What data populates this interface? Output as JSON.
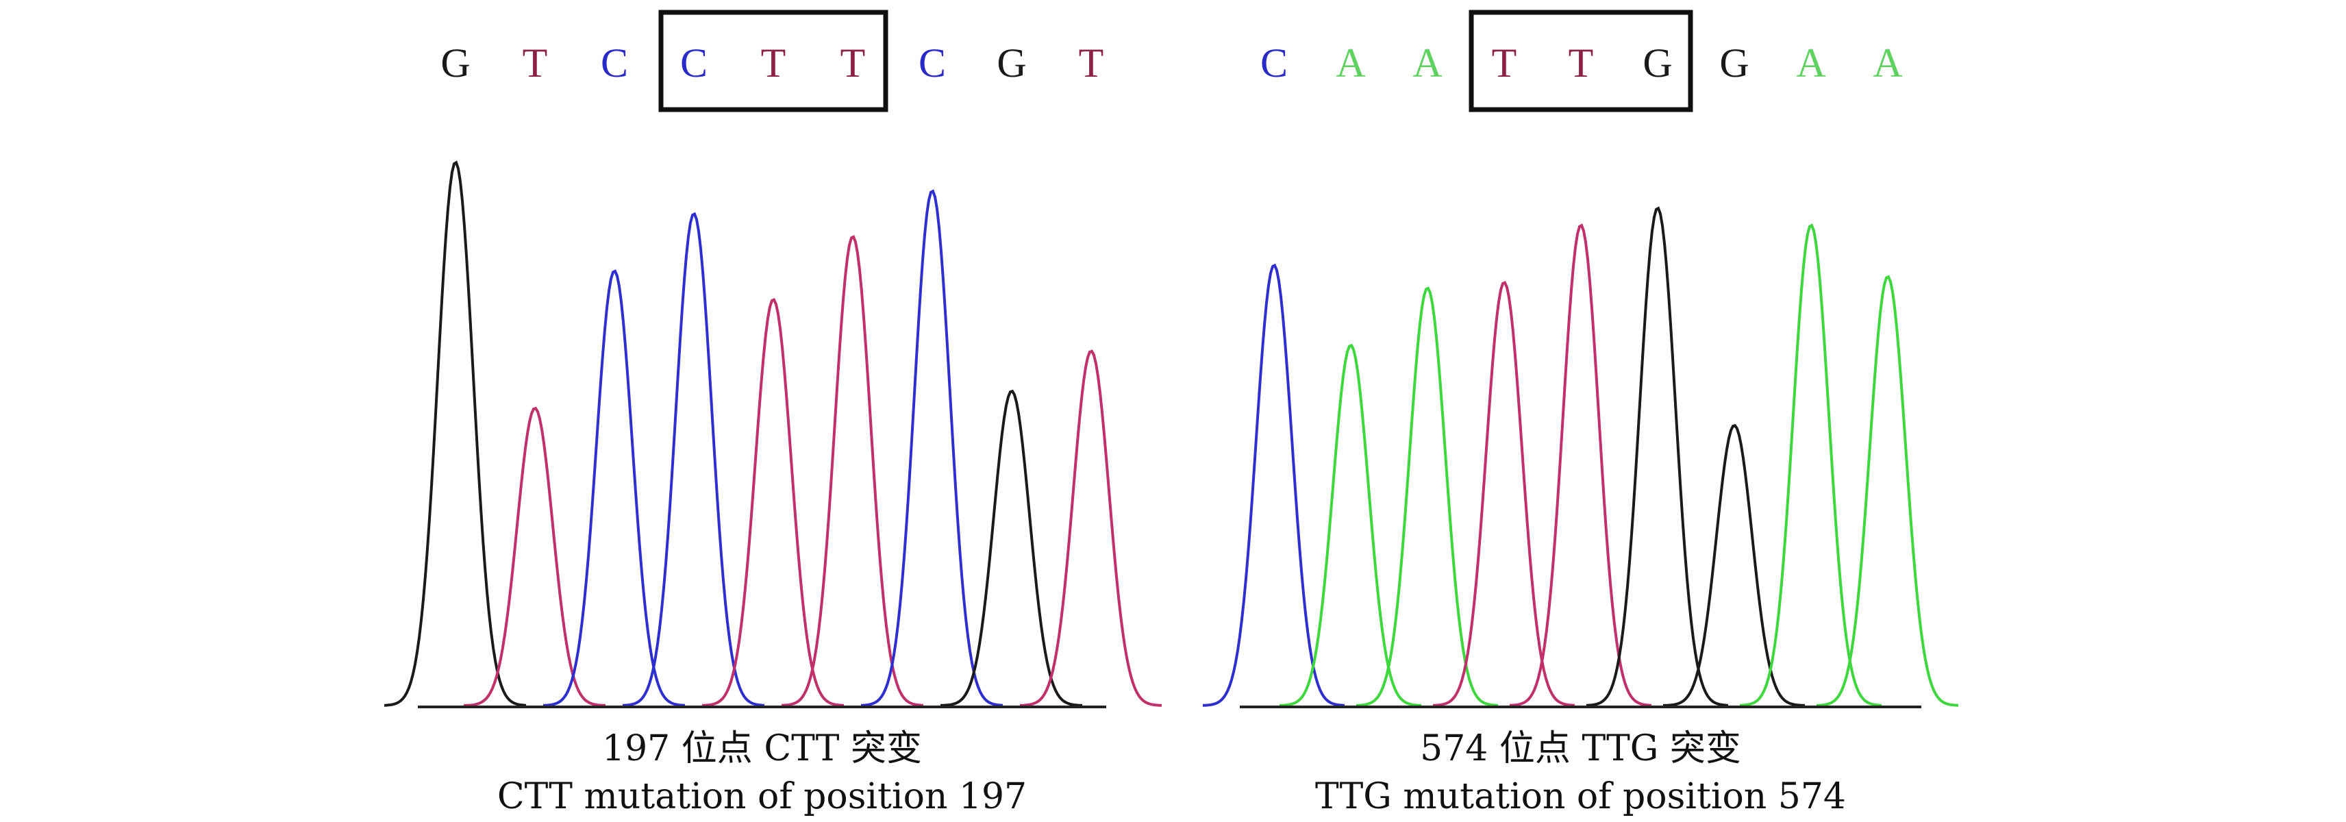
{
  "colors": {
    "G": "#1a1a1a",
    "T": "#8b2246",
    "C": "#2a2ac8",
    "A": "#5ed25e"
  },
  "trace_colors": {
    "G": "#1a1a1a",
    "T": "#c0306a",
    "C": "#2f2fd0",
    "A": "#3ed83e"
  },
  "panels": [
    {
      "bases": [
        "G",
        "T",
        "C",
        "C",
        "T",
        "T",
        "C",
        "G",
        "T"
      ],
      "highlight": [
        3,
        5
      ],
      "peak_heights": [
        0.95,
        0.52,
        0.76,
        0.86,
        0.71,
        0.82,
        0.9,
        0.55,
        0.62
      ],
      "caption_line1": "197 位点 CTT 突变",
      "caption_line2": "CTT mutation of position 197"
    },
    {
      "bases": [
        "C",
        "A",
        "A",
        "T",
        "T",
        "G",
        "G",
        "A",
        "A"
      ],
      "highlight": [
        3,
        5
      ],
      "peak_heights": [
        0.77,
        0.63,
        0.73,
        0.74,
        0.84,
        0.87,
        0.49,
        0.84,
        0.75
      ],
      "caption_line1": "574 位点 TTG 突变",
      "caption_line2": "TTG mutation of position 574"
    }
  ]
}
